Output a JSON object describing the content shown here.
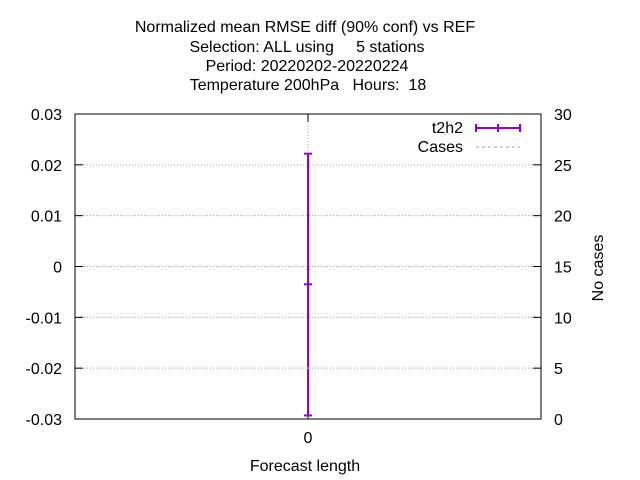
{
  "chart_data": {
    "type": "line",
    "title_lines": [
      "Normalized mean RMSE diff (90% conf) vs REF",
      "Selection: ALL using     5 stations",
      "Period: 20220202-20220224",
      "Temperature 200hPa   Hours:  18"
    ],
    "xlabel": "Forecast length",
    "ylabel": "",
    "y2label": "No cases",
    "x_ticks": [
      "0"
    ],
    "xlim": [
      -1,
      1
    ],
    "ylim": [
      -0.03,
      0.03
    ],
    "y_ticks": [
      "0.03",
      "0.02",
      "0.01",
      "0",
      "-0.01",
      "-0.02",
      "-0.03"
    ],
    "y_tick_values": [
      0.03,
      0.02,
      0.01,
      0,
      -0.01,
      -0.02,
      -0.03
    ],
    "y2lim": [
      0,
      30
    ],
    "y2_ticks": [
      "30",
      "25",
      "20",
      "15",
      "10",
      "5",
      "0"
    ],
    "y2_tick_values": [
      30,
      25,
      20,
      15,
      10,
      5,
      0
    ],
    "grid": true,
    "legend_position": "top-right",
    "series": [
      {
        "name": "t2h2",
        "style": "errorbars",
        "color": "#9400d3",
        "x": [
          0
        ],
        "y": [
          -0.0035
        ],
        "ylow": [
          -0.0293
        ],
        "yhigh": [
          0.0222
        ]
      },
      {
        "name": "Cases",
        "style": "dashed",
        "color": "#a0a0a0",
        "axis": "y2",
        "x": [
          0
        ],
        "y": [
          5
        ]
      }
    ]
  }
}
